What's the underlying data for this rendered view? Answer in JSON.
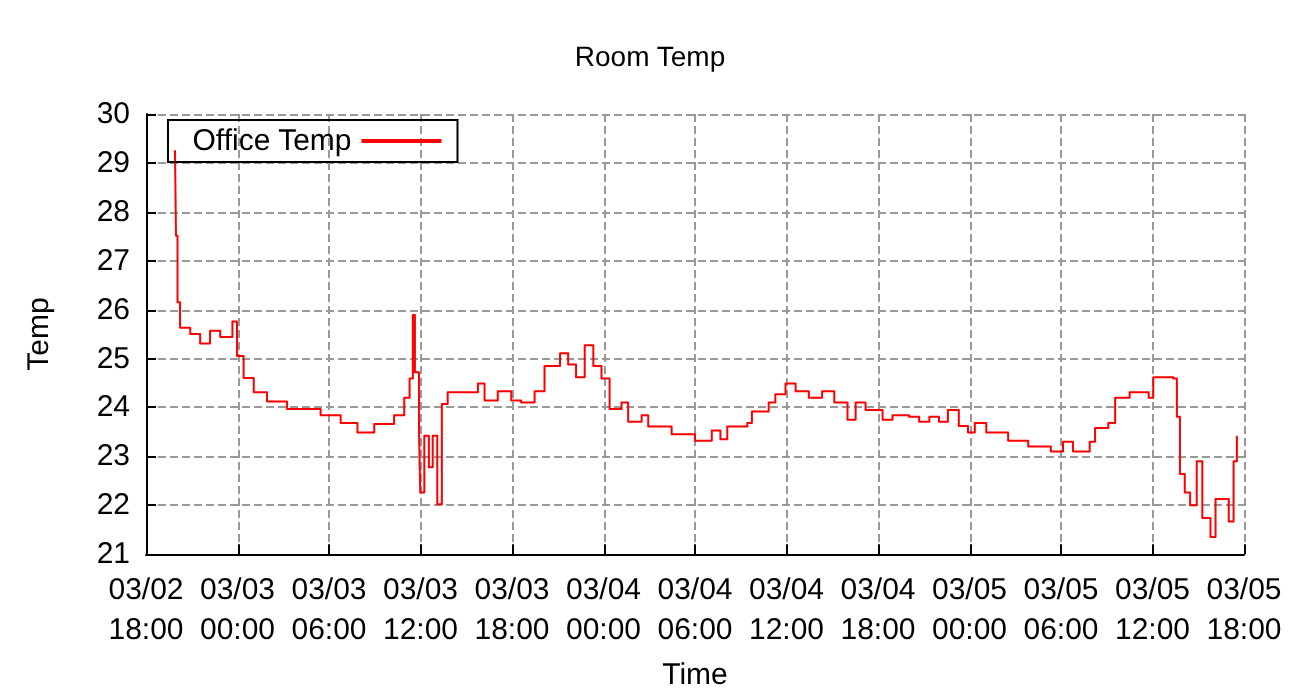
{
  "chart_data": {
    "type": "step",
    "title": "Room Temp",
    "xlabel": "Time",
    "ylabel": "Temp",
    "xlim": [
      "--03-02T18:00",
      "--03-05T18:00"
    ],
    "xticks": [
      {
        "value": "--03-02T18:00",
        "label": "03/02\n18:00"
      },
      {
        "value": "--03-03T00:00",
        "label": "03/03\n00:00"
      },
      {
        "value": "--03-03T06:00",
        "label": "03/03\n06:00"
      },
      {
        "value": "--03-03T12:00",
        "label": "03/03\n12:00"
      },
      {
        "value": "--03-03T18:00",
        "label": "03/03\n18:00"
      },
      {
        "value": "--03-04T00:00",
        "label": "03/04\n00:00"
      },
      {
        "value": "--03-04T06:00",
        "label": "03/04\n06:00"
      },
      {
        "value": "--03-04T12:00",
        "label": "03/04\n12:00"
      },
      {
        "value": "--03-04T18:00",
        "label": "03/04\n18:00"
      },
      {
        "value": "--03-05T00:00",
        "label": "03/05\n00:00"
      },
      {
        "value": "--03-05T06:00",
        "label": "03/05\n06:00"
      },
      {
        "value": "--03-05T12:00",
        "label": "03/05\n12:00"
      },
      {
        "value": "--03-05T18:00",
        "label": "03/05\n18:00"
      }
    ],
    "ylim": [
      21,
      30
    ],
    "yticks": [
      21,
      22,
      23,
      24,
      25,
      26,
      27,
      28,
      29,
      30
    ],
    "grid": true,
    "legend": "top left",
    "marker": "none",
    "line_style": "solid",
    "series": [
      {
        "name": "Office Temp",
        "color": "#ff0000",
        "x": [
          "--03-02T19:54",
          "--03-02T19:58",
          "--03-02T20:04",
          "--03-02T20:14",
          "--03-02T20:54",
          "--03-02T21:33",
          "--03-02T22:12",
          "--03-02T22:52",
          "--03-02T23:40",
          "--03-02T23:58",
          "--03-03T00:24",
          "--03-03T01:04",
          "--03-03T01:56",
          "--03-03T03:15",
          "--03-03T05:27",
          "--03-03T06:46",
          "--03-03T07:52",
          "--03-03T08:58",
          "--03-03T10:16",
          "--03-03T10:56",
          "--03-03T11:17",
          "--03-03T11:30",
          "--03-03T11:38",
          "--03-03T11:54",
          "--03-03T11:59",
          "--03-03T12:15",
          "--03-03T12:33",
          "--03-03T12:48",
          "--03-03T13:06",
          "--03-03T13:24",
          "--03-03T13:47",
          "--03-03T15:18",
          "--03-03T15:46",
          "--03-03T16:12",
          "--03-03T17:04",
          "--03-03T17:57",
          "--03-03T18:36",
          "--03-03T19:29",
          "--03-03T20:08",
          "--03-03T21:09",
          "--03-03T21:41",
          "--03-03T22:12",
          "--03-03T22:46",
          "--03-03T23:20",
          "--03-03T23:52",
          "--03-04T00:24",
          "--03-04T01:11",
          "--03-04T01:37",
          "--03-04T02:30",
          "--03-04T02:56",
          "--03-04T04:28",
          "--03-04T06:00",
          "--03-04T07:06",
          "--03-04T07:40",
          "--03-04T08:07",
          "--03-04T09:26",
          "--03-04T09:44",
          "--03-04T10:50",
          "--03-04T11:16",
          "--03-04T11:56",
          "--03-04T12:36",
          "--03-04T13:28",
          "--03-04T14:20",
          "--03-04T15:08",
          "--03-04T16:00",
          "--03-04T16:32",
          "--03-04T17:11",
          "--03-04T18:18",
          "--03-04T18:57",
          "--03-04T20:02",
          "--03-04T20:42",
          "--03-04T21:22",
          "--03-04T22:00",
          "--03-04T22:35",
          "--03-04T23:18",
          "--03-04T23:54",
          "--03-05T00:21",
          "--03-05T01:06",
          "--03-05T02:32",
          "--03-05T03:51",
          "--03-05T05:20",
          "--03-05T06:08",
          "--03-05T06:47",
          "--03-05T07:53",
          "--03-05T08:14",
          "--03-05T09:06",
          "--03-05T09:33",
          "--03-05T10:30",
          "--03-05T11:45",
          "--03-05T12:03",
          "--03-05T13:22",
          "--03-05T13:36",
          "--03-05T13:48",
          "--03-05T14:07",
          "--03-05T14:28",
          "--03-05T14:54",
          "--03-05T15:16",
          "--03-05T15:48",
          "--03-05T16:08",
          "--03-05T16:40",
          "--03-05T17:00",
          "--03-05T17:19",
          "--03-05T17:32"
        ],
        "values": [
          29.26,
          27.51,
          26.15,
          25.63,
          25.5,
          25.31,
          25.57,
          25.44,
          25.76,
          25.05,
          24.6,
          24.31,
          24.12,
          23.97,
          23.84,
          23.68,
          23.49,
          23.66,
          23.84,
          24.2,
          24.59,
          25.89,
          24.72,
          23.55,
          22.26,
          23.42,
          22.78,
          23.42,
          22.02,
          24.07,
          24.31,
          24.31,
          24.49,
          24.14,
          24.33,
          24.14,
          24.1,
          24.33,
          24.85,
          25.11,
          24.88,
          24.62,
          25.27,
          24.85,
          24.59,
          23.97,
          24.1,
          23.71,
          23.84,
          23.61,
          23.45,
          23.32,
          23.53,
          23.35,
          23.61,
          23.68,
          23.92,
          24.1,
          24.27,
          24.49,
          24.33,
          24.2,
          24.33,
          24.1,
          23.75,
          24.1,
          23.95,
          23.75,
          23.84,
          23.81,
          23.71,
          23.81,
          23.71,
          23.95,
          23.62,
          23.49,
          23.68,
          23.49,
          23.32,
          23.2,
          23.1,
          23.3,
          23.1,
          23.3,
          23.58,
          23.68,
          24.2,
          24.31,
          24.2,
          24.62,
          24.59,
          23.81,
          22.64,
          22.26,
          22.0,
          22.9,
          21.74,
          21.35,
          22.13,
          22.13,
          21.67,
          22.9,
          23.42
        ]
      }
    ]
  }
}
